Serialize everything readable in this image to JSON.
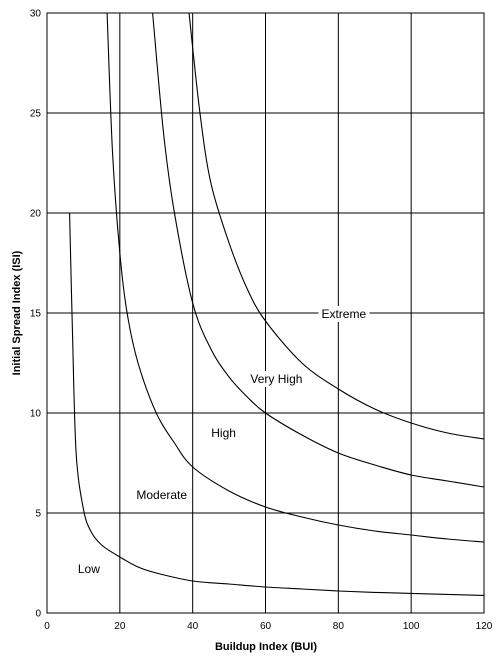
{
  "chart_data": {
    "type": "line",
    "title": "",
    "xlabel": "Buildup Index (BUI)",
    "ylabel": "Initial Spread Index (ISI)",
    "xlim": [
      0,
      120
    ],
    "ylim": [
      0,
      30
    ],
    "xticks": [
      0,
      20,
      40,
      60,
      80,
      100,
      120
    ],
    "yticks": [
      0,
      5,
      10,
      15,
      20,
      25,
      30
    ],
    "grid": true,
    "series": [
      {
        "name": "",
        "x": [
          6.2,
          7,
          8,
          10,
          12,
          15,
          20,
          25,
          30,
          40,
          50,
          60,
          70,
          80,
          90,
          100,
          110,
          120
        ],
        "y": [
          20,
          14,
          8,
          5.2,
          4.1,
          3.4,
          2.8,
          2.3,
          2.0,
          1.6,
          1.45,
          1.3,
          1.2,
          1.1,
          1.03,
          0.98,
          0.93,
          0.88
        ]
      },
      {
        "name": "",
        "x": [
          16.5,
          18,
          20,
          22,
          25,
          30,
          35,
          40,
          50,
          60,
          70,
          80,
          90,
          100,
          110,
          120
        ],
        "y": [
          30,
          23,
          18,
          15,
          12.5,
          10,
          8.5,
          7.3,
          6.1,
          5.3,
          4.8,
          4.4,
          4.1,
          3.9,
          3.7,
          3.55
        ]
      },
      {
        "name": "",
        "x": [
          29,
          32,
          35,
          40,
          45,
          50,
          55,
          60,
          70,
          80,
          90,
          100,
          110,
          120
        ],
        "y": [
          30,
          24,
          20,
          15.5,
          13.2,
          11.8,
          10.8,
          10,
          8.9,
          8,
          7.4,
          6.9,
          6.6,
          6.3
        ]
      },
      {
        "name": "",
        "x": [
          39,
          42,
          45,
          50,
          55,
          60,
          70,
          80,
          90,
          100,
          110,
          120
        ],
        "y": [
          30,
          25,
          21.5,
          18.5,
          16.2,
          14.6,
          12.5,
          11.2,
          10.2,
          9.5,
          9,
          8.7
        ]
      }
    ],
    "annotations": [
      {
        "text": "Low",
        "x": 11.5,
        "y": 2.2
      },
      {
        "text": "Moderate",
        "x": 31.5,
        "y": 5.9
      },
      {
        "text": "High",
        "x": 48.5,
        "y": 9.0
      },
      {
        "text": "Very High",
        "x": 63,
        "y": 11.7
      },
      {
        "text": "Extreme",
        "x": 81.5,
        "y": 14.95
      }
    ]
  }
}
